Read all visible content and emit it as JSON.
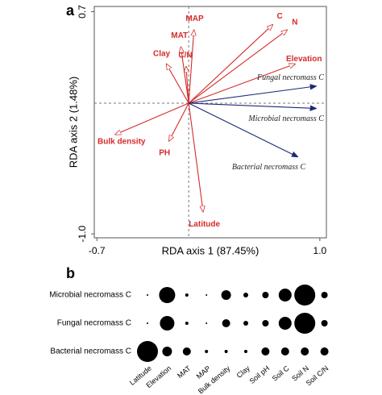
{
  "chart_data": [
    {
      "type": "biplot",
      "panel_label": "a",
      "x_label": "RDA axis 1 (87.45%)",
      "y_label": "RDA axis 2 (1.48%)",
      "xlim": [
        -0.72,
        1.05
      ],
      "ylim": [
        -1.03,
        0.74
      ],
      "xticks": [
        -0.7,
        {
          "value": 1,
          "label": "1.0"
        }
      ],
      "yticks": [
        0.7,
        {
          "value": -1,
          "label": "-1.0"
        }
      ],
      "series": [
        {
          "color": "#d62a2a",
          "labels": [
            "C",
            "N",
            "Elevation",
            "MAT",
            "MAP",
            "Clay",
            "C/N",
            "Bulk density",
            "PH",
            "Latitude"
          ],
          "x": [
            0.64,
            0.75,
            0.81,
            -0.06,
            0.04,
            -0.17,
            -0.02,
            -0.56,
            -0.15,
            0.11
          ],
          "y": [
            0.6,
            0.56,
            0.3,
            0.43,
            0.56,
            0.3,
            0.28,
            -0.24,
            -0.29,
            -0.83
          ]
        },
        {
          "color": "#1c2a78",
          "labels": [
            "Fungal necromass C",
            "Microbial necromass C",
            "Bacterial necromass C"
          ],
          "x": [
            0.97,
            0.97,
            0.83
          ],
          "y": [
            0.13,
            -0.04,
            -0.41
          ]
        }
      ]
    },
    {
      "type": "bubble_matrix",
      "panel_label": "b",
      "color": "#000000",
      "columns": [
        "Latitude",
        "Elevation",
        "MAT",
        "MAP",
        "Bulk density",
        "Clay",
        "Soil pH",
        "Soil C",
        "Soil N",
        "Soil C/N"
      ],
      "series": [
        {
          "name": "Microbial necromass C",
          "values": [
            1,
            100,
            4,
            1,
            36,
            9,
            16,
            64,
            169,
            16
          ]
        },
        {
          "name": "Fungal necromass C",
          "values": [
            1,
            81,
            4,
            1,
            25,
            9,
            16,
            64,
            169,
            16
          ]
        },
        {
          "name": "Bacterial necromass C",
          "values": [
            169,
            36,
            25,
            4,
            4,
            4,
            25,
            25,
            25,
            25
          ]
        }
      ]
    }
  ]
}
